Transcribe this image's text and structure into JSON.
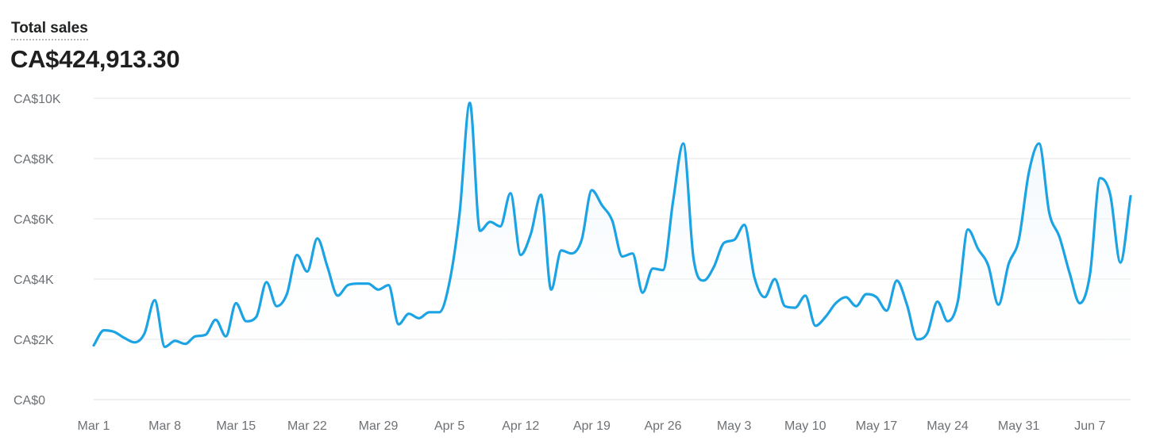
{
  "header": {
    "title": "Total sales",
    "total": "CA$424,913.30"
  },
  "colors": {
    "line": "#1ba3e3",
    "area_top": "#eaf4fb",
    "grid": "#e4e5e7",
    "baseline": "#dcdddf",
    "axis_text": "#6d7175"
  },
  "chart_data": {
    "type": "line",
    "title": "Total sales",
    "xlabel": "",
    "ylabel": "",
    "ylim": [
      0,
      10000
    ],
    "yticks": [
      0,
      2000,
      4000,
      6000,
      8000,
      10000
    ],
    "ytick_labels": [
      "CA$0",
      "CA$2K",
      "CA$4K",
      "CA$6K",
      "CA$8K",
      "CA$10K"
    ],
    "x_start": "2021-03-01",
    "x_end": "2021-06-09",
    "xtick_labels": [
      "Mar 1",
      "Mar 8",
      "Mar 15",
      "Mar 22",
      "Mar 29",
      "Apr 5",
      "Apr 12",
      "Apr 19",
      "Apr 26",
      "May 3",
      "May 10",
      "May 17",
      "May 24",
      "May 31",
      "Jun 7"
    ],
    "grid": true,
    "legend": "none",
    "series": [
      {
        "name": "",
        "values": [
          1800,
          2300,
          2250,
          2050,
          1900,
          2200,
          3300,
          1750,
          1950,
          1850,
          2100,
          2150,
          2650,
          2100,
          3200,
          2600,
          2750,
          3900,
          3100,
          3500,
          4800,
          4250,
          5350,
          4400,
          3450,
          3800,
          3850,
          3850,
          3650,
          3800,
          2500,
          2850,
          2700,
          2900,
          2900,
          3900,
          6200,
          9850,
          5600,
          5900,
          5750,
          6850,
          4800,
          5500,
          6800,
          3650,
          4950,
          4850,
          5300,
          6950,
          6450,
          5950,
          4750,
          4850,
          3550,
          4350,
          4300,
          6600,
          8500,
          4700,
          3950,
          4400,
          5200,
          5300,
          5800,
          4050,
          3400,
          4000,
          3100,
          3050,
          3450,
          2450,
          2750,
          3200,
          3400,
          3100,
          3500,
          3400,
          2950,
          3950,
          3150,
          2000,
          2200,
          3250,
          2600,
          3250,
          5650,
          5000,
          4450,
          3150,
          4500,
          5300,
          7550,
          8500,
          6200,
          5400,
          4200,
          3200,
          4150,
          7350,
          6800,
          4550,
          6750
        ]
      }
    ]
  }
}
